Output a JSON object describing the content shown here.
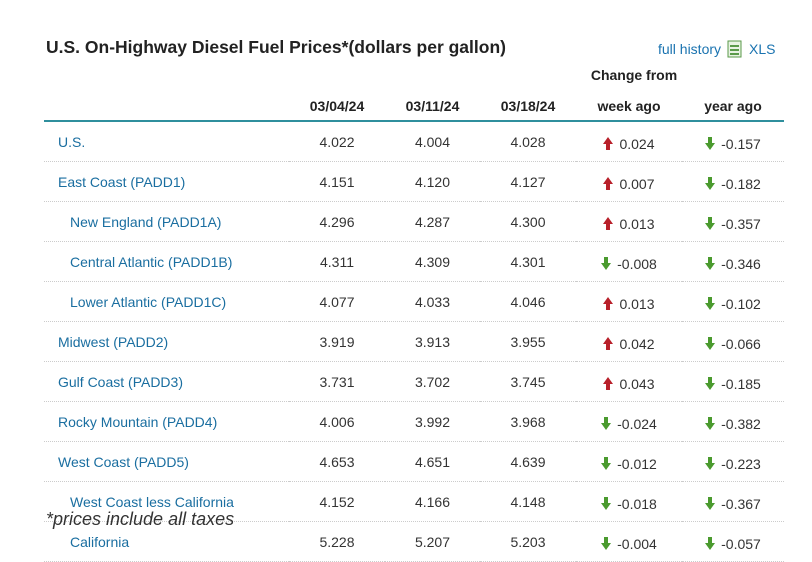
{
  "header": {
    "title": "U.S. On-Highway Diesel Fuel Prices*(dollars per gallon)",
    "history_link": "full history",
    "xls_link": "XLS"
  },
  "table": {
    "group_header": "Change from",
    "columns": [
      "03/04/24",
      "03/11/24",
      "03/18/24",
      "week ago",
      "year ago"
    ],
    "rows": [
      {
        "name": "U.S.",
        "indent": false,
        "values": [
          "4.022",
          "4.004",
          "4.028",
          "0.024",
          "-0.157"
        ]
      },
      {
        "name": "East Coast (PADD1)",
        "indent": false,
        "values": [
          "4.151",
          "4.120",
          "4.127",
          "0.007",
          "-0.182"
        ]
      },
      {
        "name": "New England (PADD1A)",
        "indent": true,
        "values": [
          "4.296",
          "4.287",
          "4.300",
          "0.013",
          "-0.357"
        ]
      },
      {
        "name": "Central Atlantic (PADD1B)",
        "indent": true,
        "values": [
          "4.311",
          "4.309",
          "4.301",
          "-0.008",
          "-0.346"
        ]
      },
      {
        "name": "Lower Atlantic (PADD1C)",
        "indent": true,
        "values": [
          "4.077",
          "4.033",
          "4.046",
          "0.013",
          "-0.102"
        ]
      },
      {
        "name": "Midwest (PADD2)",
        "indent": false,
        "values": [
          "3.919",
          "3.913",
          "3.955",
          "0.042",
          "-0.066"
        ]
      },
      {
        "name": "Gulf Coast (PADD3)",
        "indent": false,
        "values": [
          "3.731",
          "3.702",
          "3.745",
          "0.043",
          "-0.185"
        ]
      },
      {
        "name": "Rocky Mountain (PADD4)",
        "indent": false,
        "values": [
          "4.006",
          "3.992",
          "3.968",
          "-0.024",
          "-0.382"
        ]
      },
      {
        "name": "West Coast (PADD5)",
        "indent": false,
        "values": [
          "4.653",
          "4.651",
          "4.639",
          "-0.012",
          "-0.223"
        ]
      },
      {
        "name": "West Coast less California",
        "indent": true,
        "values": [
          "4.152",
          "4.166",
          "4.148",
          "-0.018",
          "-0.367"
        ]
      },
      {
        "name": "California",
        "indent": true,
        "values": [
          "5.228",
          "5.207",
          "5.203",
          "-0.004",
          "-0.057"
        ]
      }
    ]
  },
  "footnote": "*prices include all taxes"
}
